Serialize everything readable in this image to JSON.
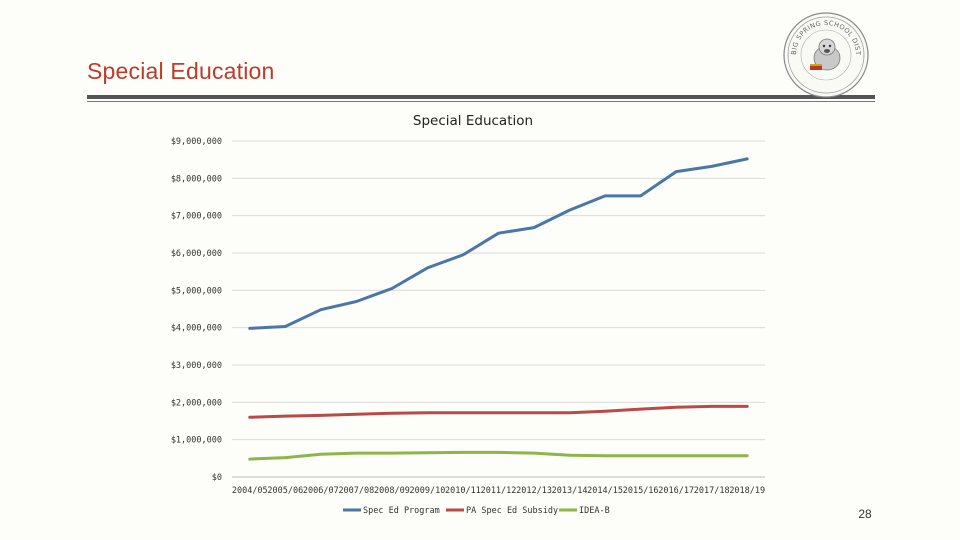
{
  "slide": {
    "title": "Special Education",
    "page_number": "28",
    "logo_text": "BIG SPRING SCHOOL DISTRICT"
  },
  "chart_data": {
    "type": "line",
    "title": "Special Education",
    "categories": [
      "2004/05",
      "2005/06",
      "2006/07",
      "2007/08",
      "2008/09",
      "2009/10",
      "2010/11",
      "2011/12",
      "2012/13",
      "2013/14",
      "2014/15",
      "2015/16",
      "2016/17",
      "2017/18",
      "2018/19"
    ],
    "series": [
      {
        "name": "Spec Ed Program",
        "color": "#4a76a8",
        "values": [
          3980000,
          4030000,
          4480000,
          4700000,
          5050000,
          5600000,
          5950000,
          6530000,
          6680000,
          7150000,
          7530000,
          7530000,
          8180000,
          8320000,
          8520000
        ]
      },
      {
        "name": "PA Spec Ed Subsidy",
        "color": "#b94a48",
        "values": [
          1600000,
          1630000,
          1650000,
          1680000,
          1710000,
          1720000,
          1720000,
          1720000,
          1720000,
          1720000,
          1760000,
          1820000,
          1870000,
          1890000,
          1890000
        ]
      },
      {
        "name": "IDEA-B",
        "color": "#8eb54a",
        "values": [
          480000,
          520000,
          610000,
          640000,
          640000,
          650000,
          660000,
          660000,
          640000,
          580000,
          570000,
          570000,
          570000,
          570000,
          570000
        ]
      }
    ],
    "ylim": [
      0,
      9000000
    ],
    "y_ticks": [
      "$0",
      "$1,000,000",
      "$2,000,000",
      "$3,000,000",
      "$4,000,000",
      "$5,000,000",
      "$6,000,000",
      "$7,000,000",
      "$8,000,000",
      "$9,000,000"
    ],
    "grid": true,
    "legend": "bottom"
  }
}
